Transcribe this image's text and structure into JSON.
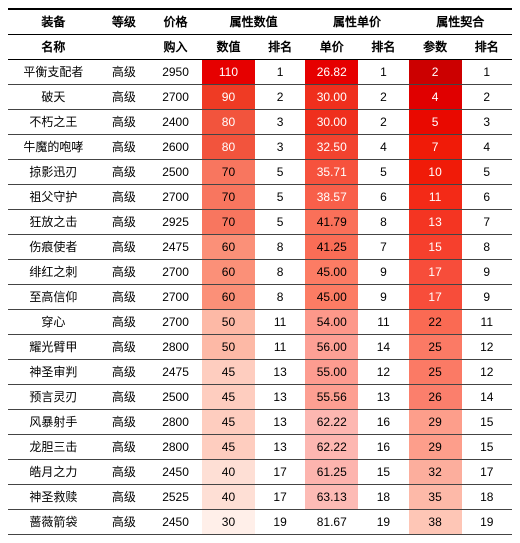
{
  "header": {
    "top": [
      "装备",
      "等级",
      "价格",
      "属性数值",
      "属性单价",
      "属性契合"
    ],
    "sub": [
      "名称",
      "",
      "购入",
      "数值",
      "排名",
      "单价",
      "排名",
      "参数",
      "排名"
    ]
  },
  "columns": {
    "widths_class": [
      "col-name",
      "col-grade",
      "col-price",
      "col-val",
      "col-rank",
      "col-val",
      "col-rank",
      "col-val",
      "col-rank"
    ]
  },
  "heat": {
    "value": {
      "colors": [
        "#e60000",
        "#ef3b24",
        "#f2543d",
        "#f2543d",
        "#f8765f",
        "#f8765f",
        "#f8765f",
        "#fb9078",
        "#fb9078",
        "#fb9078",
        "#fdb9a6",
        "#fdb9a6",
        "#fecdbf",
        "#fecdbf",
        "#fecdbf",
        "#fecdbf",
        "#fedfd5",
        "#fedfd5",
        "#ffefe9"
      ],
      "whiteText": [
        true,
        true,
        true,
        true,
        false,
        false,
        false,
        false,
        false,
        false,
        false,
        false,
        false,
        false,
        false,
        false,
        false,
        false,
        false
      ]
    },
    "price": {
      "colors": [
        "#e60000",
        "#ef2f1d",
        "#ef2f1d",
        "#f2432f",
        "#f6523d",
        "#f85f4a",
        "#fa7059",
        "#fa6d56",
        "#fc7c64",
        "#fc7c64",
        "#fd988a",
        "#fda095",
        "#fd9c90",
        "#fd9f92",
        "#fdb7b1",
        "#fdb7b1",
        "#fdb4ae",
        "#fdbbb5",
        "#ffffff"
      ],
      "whiteText": [
        true,
        true,
        true,
        true,
        true,
        true,
        false,
        false,
        false,
        false,
        false,
        false,
        false,
        false,
        false,
        false,
        false,
        false,
        false
      ]
    },
    "fit": {
      "colors": [
        "#cc0000",
        "#e00000",
        "#e90900",
        "#f01b08",
        "#f01b08",
        "#f32a17",
        "#f43522",
        "#f6402d",
        "#f74d3a",
        "#f74d3a",
        "#fa6a53",
        "#fb7a65",
        "#fb7a65",
        "#fb7f6c",
        "#fd9e8b",
        "#fd9e8b",
        "#fcae9d",
        "#fdb9a8",
        "#fec6b6"
      ],
      "whiteText": [
        true,
        true,
        true,
        true,
        true,
        true,
        true,
        true,
        true,
        true,
        false,
        false,
        false,
        false,
        false,
        false,
        false,
        false,
        false
      ]
    }
  },
  "rows": [
    {
      "name": "平衡支配者",
      "grade": "高级",
      "price": "2950",
      "value": "110",
      "value_rank": "1",
      "uprice": "26.82",
      "uprice_rank": "1",
      "fit": "2",
      "fit_rank": "1"
    },
    {
      "name": "破天",
      "grade": "高级",
      "price": "2700",
      "value": "90",
      "value_rank": "2",
      "uprice": "30.00",
      "uprice_rank": "2",
      "fit": "4",
      "fit_rank": "2"
    },
    {
      "name": "不朽之王",
      "grade": "高级",
      "price": "2400",
      "value": "80",
      "value_rank": "3",
      "uprice": "30.00",
      "uprice_rank": "2",
      "fit": "5",
      "fit_rank": "3"
    },
    {
      "name": "牛魔的咆哮",
      "grade": "高级",
      "price": "2600",
      "value": "80",
      "value_rank": "3",
      "uprice": "32.50",
      "uprice_rank": "4",
      "fit": "7",
      "fit_rank": "4"
    },
    {
      "name": "掠影迅刃",
      "grade": "高级",
      "price": "2500",
      "value": "70",
      "value_rank": "5",
      "uprice": "35.71",
      "uprice_rank": "5",
      "fit": "10",
      "fit_rank": "5"
    },
    {
      "name": "祖父守护",
      "grade": "高级",
      "price": "2700",
      "value": "70",
      "value_rank": "5",
      "uprice": "38.57",
      "uprice_rank": "6",
      "fit": "11",
      "fit_rank": "6"
    },
    {
      "name": "狂放之击",
      "grade": "高级",
      "price": "2925",
      "value": "70",
      "value_rank": "5",
      "uprice": "41.79",
      "uprice_rank": "8",
      "fit": "13",
      "fit_rank": "7"
    },
    {
      "name": "伤痕使者",
      "grade": "高级",
      "price": "2475",
      "value": "60",
      "value_rank": "8",
      "uprice": "41.25",
      "uprice_rank": "7",
      "fit": "15",
      "fit_rank": "8"
    },
    {
      "name": "绯红之刺",
      "grade": "高级",
      "price": "2700",
      "value": "60",
      "value_rank": "8",
      "uprice": "45.00",
      "uprice_rank": "9",
      "fit": "17",
      "fit_rank": "9"
    },
    {
      "name": "至高信仰",
      "grade": "高级",
      "price": "2700",
      "value": "60",
      "value_rank": "8",
      "uprice": "45.00",
      "uprice_rank": "9",
      "fit": "17",
      "fit_rank": "9"
    },
    {
      "name": "穿心",
      "grade": "高级",
      "price": "2700",
      "value": "50",
      "value_rank": "11",
      "uprice": "54.00",
      "uprice_rank": "11",
      "fit": "22",
      "fit_rank": "11"
    },
    {
      "name": "耀光臂甲",
      "grade": "高级",
      "price": "2800",
      "value": "50",
      "value_rank": "11",
      "uprice": "56.00",
      "uprice_rank": "14",
      "fit": "25",
      "fit_rank": "12"
    },
    {
      "name": "神圣审判",
      "grade": "高级",
      "price": "2475",
      "value": "45",
      "value_rank": "13",
      "uprice": "55.00",
      "uprice_rank": "12",
      "fit": "25",
      "fit_rank": "12"
    },
    {
      "name": "预言灵刃",
      "grade": "高级",
      "price": "2500",
      "value": "45",
      "value_rank": "13",
      "uprice": "55.56",
      "uprice_rank": "13",
      "fit": "26",
      "fit_rank": "14"
    },
    {
      "name": "风暴射手",
      "grade": "高级",
      "price": "2800",
      "value": "45",
      "value_rank": "13",
      "uprice": "62.22",
      "uprice_rank": "16",
      "fit": "29",
      "fit_rank": "15"
    },
    {
      "name": "龙胆三击",
      "grade": "高级",
      "price": "2800",
      "value": "45",
      "value_rank": "13",
      "uprice": "62.22",
      "uprice_rank": "16",
      "fit": "29",
      "fit_rank": "15"
    },
    {
      "name": "皓月之力",
      "grade": "高级",
      "price": "2450",
      "value": "40",
      "value_rank": "17",
      "uprice": "61.25",
      "uprice_rank": "15",
      "fit": "32",
      "fit_rank": "17"
    },
    {
      "name": "神圣救赎",
      "grade": "高级",
      "price": "2525",
      "value": "40",
      "value_rank": "17",
      "uprice": "63.13",
      "uprice_rank": "18",
      "fit": "35",
      "fit_rank": "18"
    },
    {
      "name": "蔷薇箭袋",
      "grade": "高级",
      "price": "2450",
      "value": "30",
      "value_rank": "19",
      "uprice": "81.67",
      "uprice_rank": "19",
      "fit": "38",
      "fit_rank": "19"
    }
  ]
}
